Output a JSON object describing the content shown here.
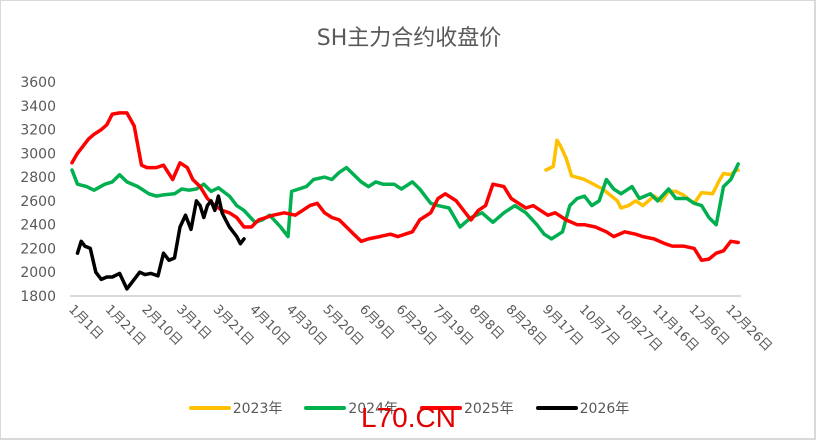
{
  "title": "SH主力合约收盘价",
  "watermark": "L70.CN",
  "chart_data": {
    "type": "line",
    "title": "SH主力合约收盘价",
    "xlabel": "",
    "ylabel": "",
    "ylim": [
      1800,
      3600
    ],
    "yticks": [
      1800,
      2000,
      2200,
      2400,
      2600,
      2800,
      3000,
      3200,
      3400,
      3600
    ],
    "xticks": [
      "1月1日",
      "1月21日",
      "2月10日",
      "3月1日",
      "3月21日",
      "4月10日",
      "4月30日",
      "5月20日",
      "6月9日",
      "6月29日",
      "7月19日",
      "8月8日",
      "8月28日",
      "9月17日",
      "10月7日",
      "10月27日",
      "11月16日",
      "12月6日",
      "12月26日"
    ],
    "xtick_days": [
      0,
      20,
      40,
      59,
      79,
      99,
      119,
      139,
      159,
      179,
      199,
      219,
      239,
      259,
      279,
      299,
      319,
      339,
      359
    ],
    "grid": false,
    "legend_position": "bottom",
    "series": [
      {
        "name": "2023年",
        "color": "#FFC000",
        "days": [
          259,
          263,
          265,
          267,
          270,
          273,
          278,
          280,
          290,
          298,
          300,
          304,
          308,
          312,
          318,
          322,
          326,
          330,
          334,
          338,
          340,
          344,
          350,
          354,
          356,
          360,
          362,
          364
        ],
        "values": [
          2860,
          2890,
          3110,
          3060,
          2960,
          2810,
          2790,
          2780,
          2700,
          2600,
          2540,
          2560,
          2600,
          2560,
          2640,
          2600,
          2680,
          2680,
          2650,
          2600,
          2580,
          2670,
          2660,
          2780,
          2830,
          2820,
          2850,
          2860
        ]
      },
      {
        "name": "2024年",
        "color": "#00B050",
        "days": [
          0,
          3,
          8,
          12,
          18,
          22,
          26,
          30,
          36,
          42,
          46,
          50,
          56,
          60,
          64,
          68,
          72,
          76,
          80,
          86,
          90,
          94,
          100,
          104,
          108,
          114,
          118,
          120,
          124,
          128,
          132,
          138,
          142,
          146,
          150,
          154,
          158,
          162,
          166,
          170,
          176,
          180,
          186,
          190,
          196,
          200,
          206,
          212,
          218,
          224,
          230,
          236,
          242,
          248,
          254,
          258,
          262,
          268,
          272,
          276,
          280,
          284,
          288,
          292,
          296,
          300,
          306,
          310,
          316,
          320,
          326,
          330,
          336,
          340,
          344,
          348,
          352,
          356,
          360,
          364
        ],
        "values": [
          2860,
          2740,
          2720,
          2690,
          2740,
          2760,
          2820,
          2760,
          2720,
          2660,
          2640,
          2650,
          2660,
          2700,
          2690,
          2700,
          2740,
          2680,
          2710,
          2640,
          2560,
          2520,
          2420,
          2440,
          2480,
          2380,
          2300,
          2680,
          2700,
          2720,
          2780,
          2800,
          2780,
          2840,
          2880,
          2820,
          2760,
          2720,
          2760,
          2740,
          2740,
          2700,
          2760,
          2700,
          2580,
          2560,
          2540,
          2380,
          2460,
          2500,
          2420,
          2500,
          2560,
          2500,
          2400,
          2320,
          2280,
          2340,
          2560,
          2620,
          2640,
          2560,
          2600,
          2780,
          2700,
          2660,
          2720,
          2620,
          2660,
          2600,
          2700,
          2620,
          2620,
          2580,
          2560,
          2460,
          2400,
          2720,
          2780,
          2910
        ]
      },
      {
        "name": "2025年",
        "color": "#FF0000",
        "days": [
          0,
          3,
          6,
          9,
          12,
          16,
          19,
          22,
          26,
          30,
          34,
          38,
          41,
          46,
          50,
          55,
          59,
          63,
          66,
          70,
          74,
          78,
          82,
          86,
          90,
          94,
          98,
          102,
          106,
          110,
          116,
          122,
          126,
          130,
          134,
          138,
          142,
          146,
          150,
          154,
          158,
          162,
          168,
          174,
          178,
          182,
          186,
          190,
          196,
          200,
          204,
          210,
          214,
          218,
          222,
          226,
          230,
          236,
          240,
          244,
          248,
          252,
          256,
          260,
          264,
          270,
          276,
          280,
          286,
          292,
          296,
          302,
          308,
          312,
          318,
          324,
          328,
          334,
          340,
          344,
          348,
          352,
          356,
          360,
          364
        ],
        "values": [
          2920,
          3000,
          3060,
          3120,
          3160,
          3200,
          3240,
          3330,
          3340,
          3340,
          3230,
          2900,
          2880,
          2880,
          2900,
          2780,
          2920,
          2880,
          2780,
          2720,
          2620,
          2560,
          2520,
          2500,
          2460,
          2380,
          2380,
          2440,
          2460,
          2480,
          2500,
          2480,
          2520,
          2560,
          2580,
          2500,
          2460,
          2440,
          2380,
          2320,
          2260,
          2280,
          2300,
          2320,
          2300,
          2320,
          2340,
          2440,
          2500,
          2620,
          2660,
          2600,
          2520,
          2440,
          2520,
          2560,
          2740,
          2720,
          2620,
          2580,
          2540,
          2560,
          2520,
          2480,
          2500,
          2440,
          2400,
          2400,
          2380,
          2340,
          2300,
          2340,
          2320,
          2300,
          2280,
          2240,
          2220,
          2220,
          2200,
          2100,
          2110,
          2160,
          2180,
          2260,
          2250
        ]
      },
      {
        "name": "2026年",
        "color": "#000000",
        "days": [
          3,
          5,
          7,
          10,
          13,
          16,
          19,
          22,
          26,
          30,
          34,
          37,
          40,
          43,
          47,
          50,
          53,
          56,
          59,
          62,
          65,
          68,
          70,
          72,
          74,
          76,
          78,
          80,
          82,
          84,
          86,
          88,
          90,
          92,
          94
        ],
        "values": [
          2160,
          2260,
          2220,
          2200,
          2000,
          1940,
          1960,
          1960,
          1990,
          1860,
          1940,
          2000,
          1980,
          1990,
          1970,
          2160,
          2100,
          2120,
          2380,
          2480,
          2360,
          2600,
          2560,
          2460,
          2560,
          2600,
          2520,
          2640,
          2500,
          2440,
          2380,
          2340,
          2300,
          2240,
          2280
        ]
      }
    ]
  },
  "legend": [
    {
      "label": "2023年",
      "color": "#FFC000"
    },
    {
      "label": "2024年",
      "color": "#00B050"
    },
    {
      "label": "2025年",
      "color": "#FF0000"
    },
    {
      "label": "2026年",
      "color": "#000000"
    }
  ]
}
